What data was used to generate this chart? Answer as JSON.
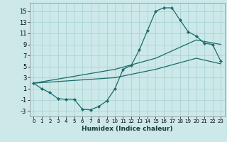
{
  "xlabel": "Humidex (Indice chaleur)",
  "background_color": "#cce8e8",
  "grid_color": "#aad4d4",
  "line_color": "#1a6b6b",
  "x_ticks": [
    0,
    1,
    2,
    3,
    4,
    5,
    6,
    7,
    8,
    9,
    10,
    11,
    12,
    13,
    14,
    15,
    16,
    17,
    18,
    19,
    20,
    21,
    22,
    23
  ],
  "y_ticks": [
    -3,
    -1,
    1,
    3,
    5,
    7,
    9,
    11,
    13,
    15
  ],
  "ylim": [
    -4.0,
    16.5
  ],
  "xlim": [
    -0.5,
    23.5
  ],
  "line1_x": [
    0,
    1,
    2,
    3,
    4,
    5,
    6,
    7,
    8,
    9,
    10,
    11,
    12,
    13,
    14,
    15,
    16,
    17,
    18,
    19,
    20,
    21,
    22,
    23
  ],
  "line1_y": [
    2.0,
    1.0,
    0.3,
    -0.8,
    -0.9,
    -0.9,
    -2.7,
    -2.8,
    -2.2,
    -1.2,
    1.0,
    4.5,
    5.2,
    8.0,
    11.5,
    15.0,
    15.6,
    15.6,
    13.4,
    11.3,
    10.5,
    9.2,
    9.0,
    6.0
  ],
  "line2_x": [
    0,
    10,
    15,
    20,
    23
  ],
  "line2_y": [
    2.0,
    4.5,
    6.5,
    9.8,
    9.0
  ],
  "line3_x": [
    0,
    10,
    15,
    20,
    23
  ],
  "line3_y": [
    2.0,
    3.0,
    4.5,
    6.5,
    5.5
  ]
}
